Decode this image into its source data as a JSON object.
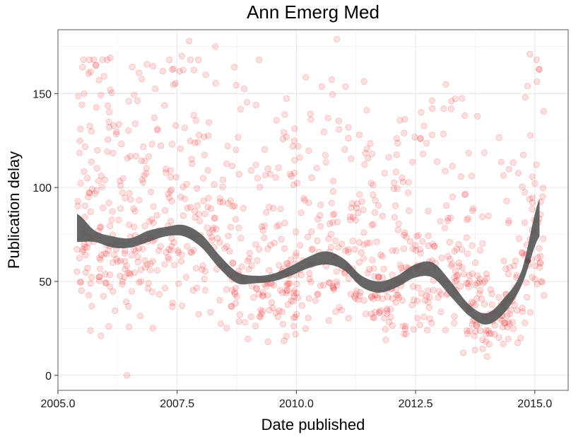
{
  "chart_data": {
    "type": "scatter",
    "title": "Ann Emerg Med",
    "xlabel": "Date published",
    "ylabel": "Publication delay",
    "xlim": [
      2005.0,
      2015.7
    ],
    "ylim": [
      -8,
      184
    ],
    "x_ticks": [
      2005.0,
      2007.5,
      2010.0,
      2012.5,
      2015.0
    ],
    "x_tick_labels": [
      "2005.0",
      "2007.5",
      "2010.0",
      "2012.5",
      "2015.0"
    ],
    "y_ticks": [
      0,
      50,
      100,
      150
    ],
    "y_tick_labels": [
      "0",
      "50",
      "100",
      "150"
    ],
    "grid": true,
    "legend": "none",
    "point_color": "#e8262a",
    "point_opacity": 0.15,
    "smooth_color": "#555555",
    "highlight_point": {
      "x": 2014.85,
      "y": 61
    },
    "smooth": {
      "x": [
        2005.4,
        2005.8,
        2006.2,
        2006.6,
        2007.0,
        2007.4,
        2007.8,
        2008.2,
        2008.6,
        2009.0,
        2009.4,
        2009.8,
        2010.2,
        2010.6,
        2011.0,
        2011.4,
        2011.8,
        2012.2,
        2012.6,
        2013.0,
        2013.3,
        2013.6,
        2013.9,
        2014.2,
        2014.5,
        2014.8,
        2015.1
      ],
      "lower": [
        71,
        71,
        68,
        68,
        71,
        74,
        74,
        68,
        57,
        49,
        49,
        50,
        53,
        57,
        59,
        56,
        47,
        44,
        47,
        52,
        52,
        42,
        32,
        27,
        33,
        48,
        74
      ],
      "upper": [
        86,
        77,
        74,
        73,
        77,
        79,
        80,
        75,
        64,
        55,
        53,
        54,
        58,
        63,
        66,
        62,
        53,
        50,
        53,
        59,
        60,
        50,
        38,
        33,
        41,
        56,
        94
      ],
      "fit": [
        78,
        74,
        71,
        70,
        74,
        77,
        77,
        71,
        60,
        52,
        51,
        52,
        55,
        60,
        63,
        59,
        50,
        47,
        50,
        55,
        56,
        46,
        35,
        30,
        37,
        52,
        84
      ]
    },
    "points_seed": 20240,
    "points_count": 1050,
    "points_x_range": [
      2005.4,
      2015.2
    ],
    "points_outliers": [
      {
        "x": 2006.45,
        "y": 0
      },
      {
        "x": 2007.75,
        "y": 178
      },
      {
        "x": 2010.85,
        "y": 179
      },
      {
        "x": 2008.3,
        "y": 175
      },
      {
        "x": 2007.6,
        "y": 170
      },
      {
        "x": 2014.9,
        "y": 171
      },
      {
        "x": 2006.1,
        "y": 169
      },
      {
        "x": 2005.8,
        "y": 165
      },
      {
        "x": 2008.7,
        "y": 164
      },
      {
        "x": 2007.2,
        "y": 162
      },
      {
        "x": 2006.7,
        "y": 161
      },
      {
        "x": 2008.1,
        "y": 160
      },
      {
        "x": 2014.85,
        "y": 154
      },
      {
        "x": 2005.55,
        "y": 150
      },
      {
        "x": 2006.1,
        "y": 152
      },
      {
        "x": 2014.8,
        "y": 148
      },
      {
        "x": 2012.85,
        "y": 142
      },
      {
        "x": 2013.25,
        "y": 146
      },
      {
        "x": 2005.9,
        "y": 21
      },
      {
        "x": 2014.0,
        "y": 10
      },
      {
        "x": 2013.5,
        "y": 12
      }
    ]
  }
}
